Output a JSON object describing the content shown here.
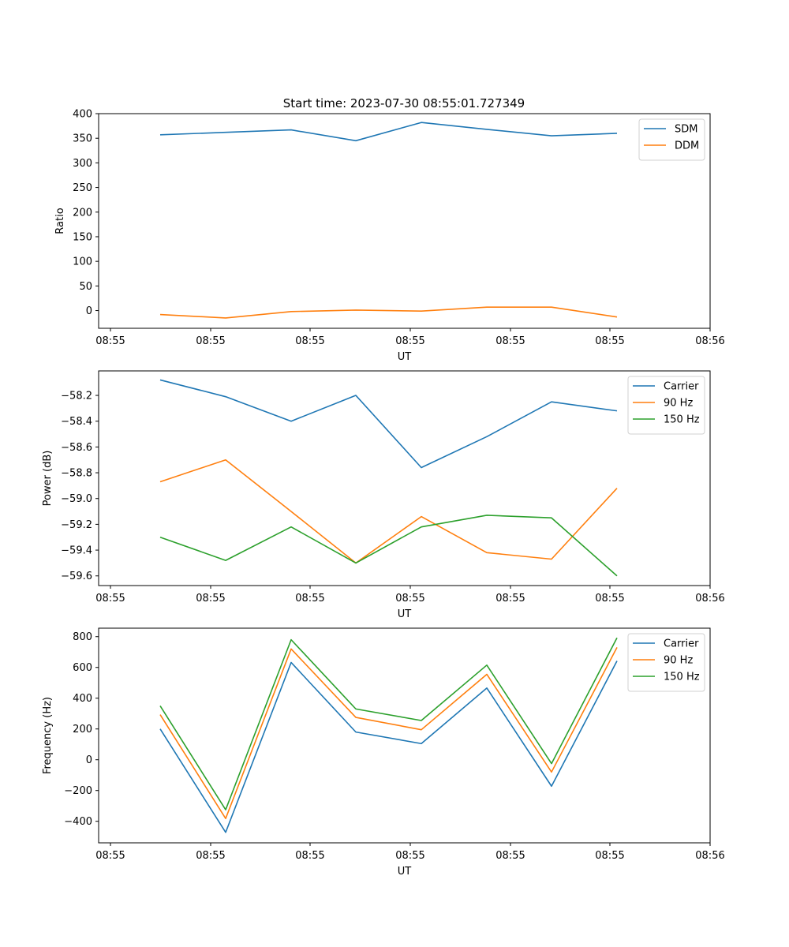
{
  "figure_title": "Start time: 2023-07-30 08:55:01.727349",
  "chart_data": [
    {
      "type": "line",
      "title": "Start time: 2023-07-30 08:55:01.727349",
      "xlabel": "UT",
      "ylabel": "Ratio",
      "x_ticks": [
        "08:55",
        "08:55",
        "08:55",
        "08:55",
        "08:55",
        "08:55",
        "08:56"
      ],
      "y_ticks": [
        0,
        50,
        100,
        150,
        200,
        250,
        300,
        350,
        400
      ],
      "y_tick_labels": [
        "0",
        "50",
        "100",
        "150",
        "200",
        "250",
        "300",
        "350",
        "400"
      ],
      "ylim": [
        -36,
        400
      ],
      "x_index": [
        0,
        1,
        2,
        3,
        4,
        5,
        6,
        7
      ],
      "legend_position": "upper-right",
      "series": [
        {
          "name": "SDM",
          "color": "#1f77b4",
          "values": [
            357,
            362,
            367,
            345,
            382,
            368,
            355,
            360
          ]
        },
        {
          "name": "DDM",
          "color": "#ff7f0e",
          "values": [
            -8,
            -15,
            -2,
            1,
            -1,
            7,
            7,
            -13
          ]
        }
      ]
    },
    {
      "type": "line",
      "xlabel": "UT",
      "ylabel": "Power (dB)",
      "x_ticks": [
        "08:55",
        "08:55",
        "08:55",
        "08:55",
        "08:55",
        "08:55",
        "08:56"
      ],
      "y_ticks": [
        -58.2,
        -58.4,
        -58.6,
        -58.8,
        -59.0,
        -59.2,
        -59.4,
        -59.6
      ],
      "y_tick_labels": [
        "−58.2",
        "−58.4",
        "−58.6",
        "−58.8",
        "−59.0",
        "−59.2",
        "−59.4",
        "−59.6"
      ],
      "ylim": [
        -59.675,
        -58.01
      ],
      "x_index": [
        0,
        1,
        2,
        3,
        4,
        5,
        6,
        7
      ],
      "legend_position": "upper-right",
      "series": [
        {
          "name": "Carrier",
          "color": "#1f77b4",
          "values": [
            -58.08,
            -58.21,
            -58.4,
            -58.2,
            -58.76,
            -58.52,
            -58.25,
            -58.32
          ]
        },
        {
          "name": "90 Hz",
          "color": "#ff7f0e",
          "values": [
            -58.87,
            -58.7,
            -59.1,
            -59.5,
            -59.14,
            -59.42,
            -59.47,
            -58.92
          ]
        },
        {
          "name": "150 Hz",
          "color": "#2ca02c",
          "values": [
            -59.3,
            -59.48,
            -59.22,
            -59.5,
            -59.22,
            -59.13,
            -59.15,
            -59.6
          ]
        }
      ]
    },
    {
      "type": "line",
      "xlabel": "UT",
      "ylabel": "Frequency (Hz)",
      "x_ticks": [
        "08:55",
        "08:55",
        "08:55",
        "08:55",
        "08:55",
        "08:55",
        "08:56"
      ],
      "y_ticks": [
        -400,
        -200,
        0,
        200,
        400,
        600,
        800
      ],
      "y_tick_labels": [
        "−400",
        "−200",
        "0",
        "200",
        "400",
        "600",
        "800"
      ],
      "ylim": [
        -540,
        855
      ],
      "x_index": [
        0,
        1,
        2,
        3,
        4,
        5,
        6,
        7
      ],
      "legend_position": "upper-right",
      "series": [
        {
          "name": "Carrier",
          "color": "#1f77b4",
          "values": [
            200,
            -472,
            632,
            180,
            105,
            466,
            -172,
            642
          ]
        },
        {
          "name": "90 Hz",
          "color": "#ff7f0e",
          "values": [
            293,
            -382,
            720,
            275,
            195,
            555,
            -80,
            730
          ]
        },
        {
          "name": "150 Hz",
          "color": "#2ca02c",
          "values": [
            350,
            -325,
            780,
            330,
            255,
            615,
            -25,
            792
          ]
        }
      ]
    }
  ]
}
